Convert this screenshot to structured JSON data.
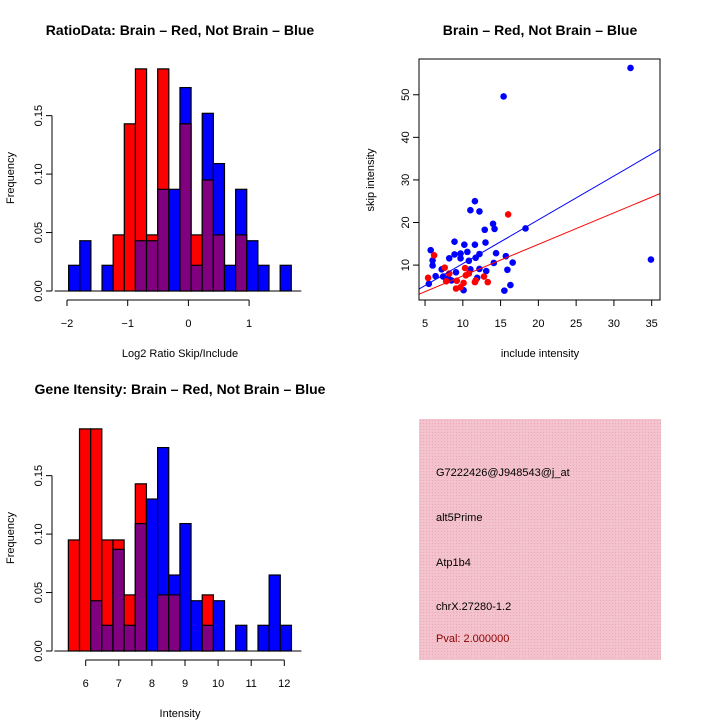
{
  "chart_data": [
    {
      "type": "bar",
      "subtype": "overlaid-histogram",
      "title": "RatioData: Brain – Red, Not Brain – Blue",
      "xlabel": "Log2 Ratio Skip/Include",
      "ylabel": "Frequency",
      "bin_start": -1.973,
      "bin_width": 0.1834,
      "xticks": [
        -2,
        -1,
        0,
        1
      ],
      "xtick_labels": [
        "−2",
        "−1",
        "0",
        "1"
      ],
      "yticks": [
        0,
        0.05,
        0.1,
        0.15
      ],
      "ytick_labels": [
        "0.00",
        "0.05",
        "0.10",
        "0.15"
      ],
      "series": [
        {
          "name": "Brain",
          "color": "#ff0000",
          "values": [
            0,
            0,
            0,
            0,
            0.048,
            0.143,
            0.19,
            0.048,
            0.19,
            0,
            0.143,
            0.048,
            0.095,
            0.048,
            0,
            0.048,
            0,
            0,
            0,
            0
          ]
        },
        {
          "name": "Not Brain",
          "color": "#0000ff",
          "values": [
            0.022,
            0.043,
            0,
            0.022,
            0,
            0,
            0.043,
            0.043,
            0.087,
            0.087,
            0.174,
            0.022,
            0.152,
            0.109,
            0.022,
            0.087,
            0.043,
            0.022,
            0,
            0.022
          ]
        }
      ],
      "overlap_color": "#800080"
    },
    {
      "type": "scatter",
      "title": "Brain – Red, Not Brain – Blue",
      "xlabel": "include intensity",
      "ylabel": "skip intensity",
      "xlim": [
        4.2,
        36.1
      ],
      "ylim": [
        1.8,
        58.4
      ],
      "xticks": [
        5,
        10,
        15,
        20,
        25,
        30,
        35
      ],
      "yticks": [
        10,
        20,
        30,
        40,
        50
      ],
      "series": [
        {
          "name": "Not Brain",
          "color": "#0000ff",
          "points": [
            [
              32.2,
              56.3
            ],
            [
              15.4,
              49.6
            ],
            [
              34.9,
              11.3
            ],
            [
              11.6,
              25.0
            ],
            [
              11.0,
              22.9
            ],
            [
              12.2,
              22.6
            ],
            [
              14.0,
              19.7
            ],
            [
              14.2,
              18.5
            ],
            [
              12.9,
              18.3
            ],
            [
              18.3,
              18.6
            ],
            [
              8.9,
              15.5
            ],
            [
              13.0,
              15.3
            ],
            [
              5.75,
              13.5
            ],
            [
              10.2,
              14.8
            ],
            [
              11.6,
              14.8
            ],
            [
              10.6,
              13.1
            ],
            [
              14.4,
              12.8
            ],
            [
              8.2,
              11.6
            ],
            [
              8.9,
              12.5
            ],
            [
              9.7,
              12.7
            ],
            [
              9.7,
              11.6
            ],
            [
              12.2,
              12.6
            ],
            [
              11.7,
              11.7
            ],
            [
              15.7,
              12.1
            ],
            [
              6.0,
              11.1
            ],
            [
              6.0,
              9.9
            ],
            [
              10.8,
              11.0
            ],
            [
              16.6,
              10.6
            ],
            [
              14.1,
              10.5
            ],
            [
              7.2,
              9.0
            ],
            [
              11.0,
              9.0
            ],
            [
              12.2,
              9.1
            ],
            [
              13.1,
              8.6
            ],
            [
              9.1,
              8.3
            ],
            [
              15.9,
              8.9
            ],
            [
              6.4,
              7.4
            ],
            [
              7.4,
              7.3
            ],
            [
              8.1,
              6.9
            ],
            [
              8.5,
              6.4
            ],
            [
              11.9,
              7.0
            ],
            [
              5.5,
              5.6
            ],
            [
              10.1,
              4.1
            ],
            [
              15.5,
              4.0
            ],
            [
              16.3,
              5.3
            ]
          ],
          "fit": {
            "intercept": 0.03,
            "slope": 1.03
          }
        },
        {
          "name": "Brain",
          "color": "#ff0000",
          "points": [
            [
              16.0,
              21.9
            ],
            [
              6.2,
              12.3
            ],
            [
              7.6,
              9.4
            ],
            [
              5.4,
              7.0
            ],
            [
              7.8,
              6.2
            ],
            [
              8.2,
              8.0
            ],
            [
              9.2,
              6.3
            ],
            [
              9.1,
              4.5
            ],
            [
              9.7,
              4.8
            ],
            [
              10.1,
              5.8
            ],
            [
              10.3,
              9.3
            ],
            [
              10.4,
              7.6
            ],
            [
              10.8,
              8.0
            ],
            [
              11.6,
              6.0
            ],
            [
              11.7,
              6.4
            ],
            [
              12.8,
              7.3
            ],
            [
              13.3,
              6.0
            ]
          ],
          "fit": {
            "intercept": 0.07,
            "slope": 0.74
          }
        }
      ]
    },
    {
      "type": "bar",
      "subtype": "overlaid-histogram",
      "title": "Gene Itensity: Brain – Red, Not Brain – Blue",
      "xlabel": "Intensity",
      "ylabel": "Frequency",
      "bin_start": 5.476,
      "bin_width": 0.337,
      "xticks": [
        6,
        7,
        8,
        9,
        10,
        11,
        12
      ],
      "xtick_labels": [
        "6",
        "7",
        "8",
        "9",
        "10",
        "11",
        "12"
      ],
      "yticks": [
        0,
        0.05,
        0.1,
        0.15
      ],
      "ytick_labels": [
        "0.00",
        "0.05",
        "0.10",
        "0.15"
      ],
      "series": [
        {
          "name": "Brain",
          "color": "#ff0000",
          "values": [
            0.095,
            0.19,
            0.19,
            0.095,
            0.095,
            0.048,
            0.143,
            0,
            0.048,
            0.048,
            0,
            0,
            0.048,
            0,
            0,
            0,
            0,
            0,
            0,
            0
          ]
        },
        {
          "name": "Not Brain",
          "color": "#0000ff",
          "values": [
            0,
            0,
            0.043,
            0.022,
            0.087,
            0.022,
            0.109,
            0.13,
            0.174,
            0.065,
            0.109,
            0.043,
            0.022,
            0.043,
            0,
            0.022,
            0,
            0.022,
            0.065,
            0.022
          ]
        }
      ],
      "overlap_color": "#800080"
    }
  ],
  "info_panel": {
    "background": "#f4c2cc",
    "probe_id": "G7222426@J948543@j_at",
    "event_type": "alt5Prime",
    "gene": "Atp1b4",
    "location": "chrX.27280-1.2",
    "pval": "Pval: 2.000000",
    "pval_color": "#8b0000"
  }
}
